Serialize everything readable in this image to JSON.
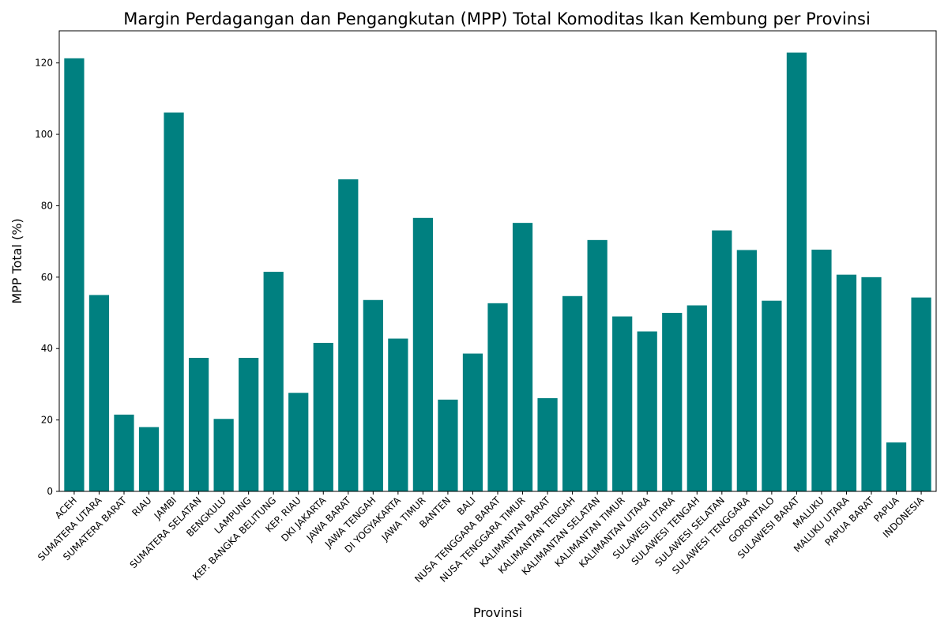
{
  "chart_data": {
    "type": "bar",
    "title": "Margin Perdagangan dan Pengangkutan (MPP) Total Komoditas Ikan Kembung per Provinsi",
    "xlabel": "Provinsi",
    "ylabel": "MPP Total (%)",
    "ylim": [
      0,
      129
    ],
    "yticks": [
      0,
      20,
      40,
      60,
      80,
      100,
      120
    ],
    "grid": false,
    "bar_color": "#008080",
    "categories": [
      "ACEH",
      "SUMATERA UTARA",
      "SUMATERA BARAT",
      "RIAU",
      "JAMBI",
      "SUMATERA SELATAN",
      "BENGKULU",
      "LAMPUNG",
      "KEP. BANGKA BELITUNG",
      "KEP. RIAU",
      "DKI JAKARTA",
      "JAWA BARAT",
      "JAWA TENGAH",
      "DI YOGYAKARTA",
      "JAWA TIMUR",
      "BANTEN",
      "BALI",
      "NUSA TENGGARA BARAT",
      "NUSA TENGGARA TIMUR",
      "KALIMANTAN BARAT",
      "KALIMANTAN TENGAH",
      "KALIMANTAN SELATAN",
      "KALIMANTAN TIMUR",
      "KALIMANTAN UTARA",
      "SULAWESI UTARA",
      "SULAWESI TENGAH",
      "SULAWESI SELATAN",
      "SULAWESI TENGGARA",
      "GORONTALO",
      "SULAWESI BARAT",
      "MALUKU",
      "MALUKU UTARA",
      "PAPUA BARAT",
      "PAPUA",
      "INDONESIA"
    ],
    "values": [
      121.3,
      55.0,
      21.5,
      18.0,
      106.1,
      37.4,
      20.3,
      37.4,
      61.5,
      27.6,
      41.6,
      87.4,
      53.6,
      42.8,
      76.6,
      25.7,
      38.6,
      52.7,
      75.2,
      26.1,
      54.7,
      70.4,
      49.0,
      44.8,
      50.0,
      52.1,
      73.1,
      67.6,
      53.4,
      122.9,
      67.7,
      60.7,
      60.0,
      13.7,
      54.3
    ]
  }
}
